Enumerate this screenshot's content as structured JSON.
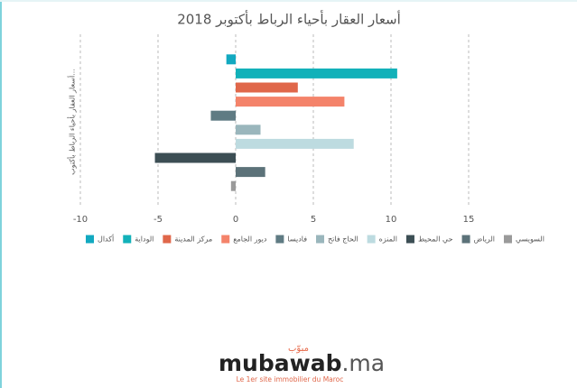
{
  "chart_data": {
    "type": "bar",
    "orientation": "horizontal",
    "title": "أسعار العقار بأحياء الرباط بأكتوبر 2018",
    "y_label": "أسعار العقار بأحياء الرباط بأكتوب...",
    "categories": [
      "أكدال",
      "الوداية",
      "مركز المدينة",
      "ديور الجامع",
      "فاديسا",
      "الحاج فاتح",
      "المنزه",
      "حي المحيط",
      "الرياض",
      "السويسي"
    ],
    "values": [
      -0.6,
      10.4,
      4,
      7,
      -1.6,
      1.6,
      7.6,
      -5.2,
      1.9,
      -0.3
    ],
    "colors": [
      "#12a9c0",
      "#12b1b9",
      "#e0674a",
      "#f4836a",
      "#5f7b83",
      "#9ab6bc",
      "#bddbe0",
      "#3c4e54",
      "#5c7279",
      "#9a9a9a"
    ],
    "xlim": [
      -10,
      15
    ],
    "xticks": [
      -10,
      -5,
      0,
      5,
      10,
      15
    ],
    "grid": true
  },
  "logo": {
    "arabic": "مبوّب",
    "name": "mubawab",
    "suffix": ".ma",
    "tagline": "Le 1er site immobilier du Maroc"
  }
}
